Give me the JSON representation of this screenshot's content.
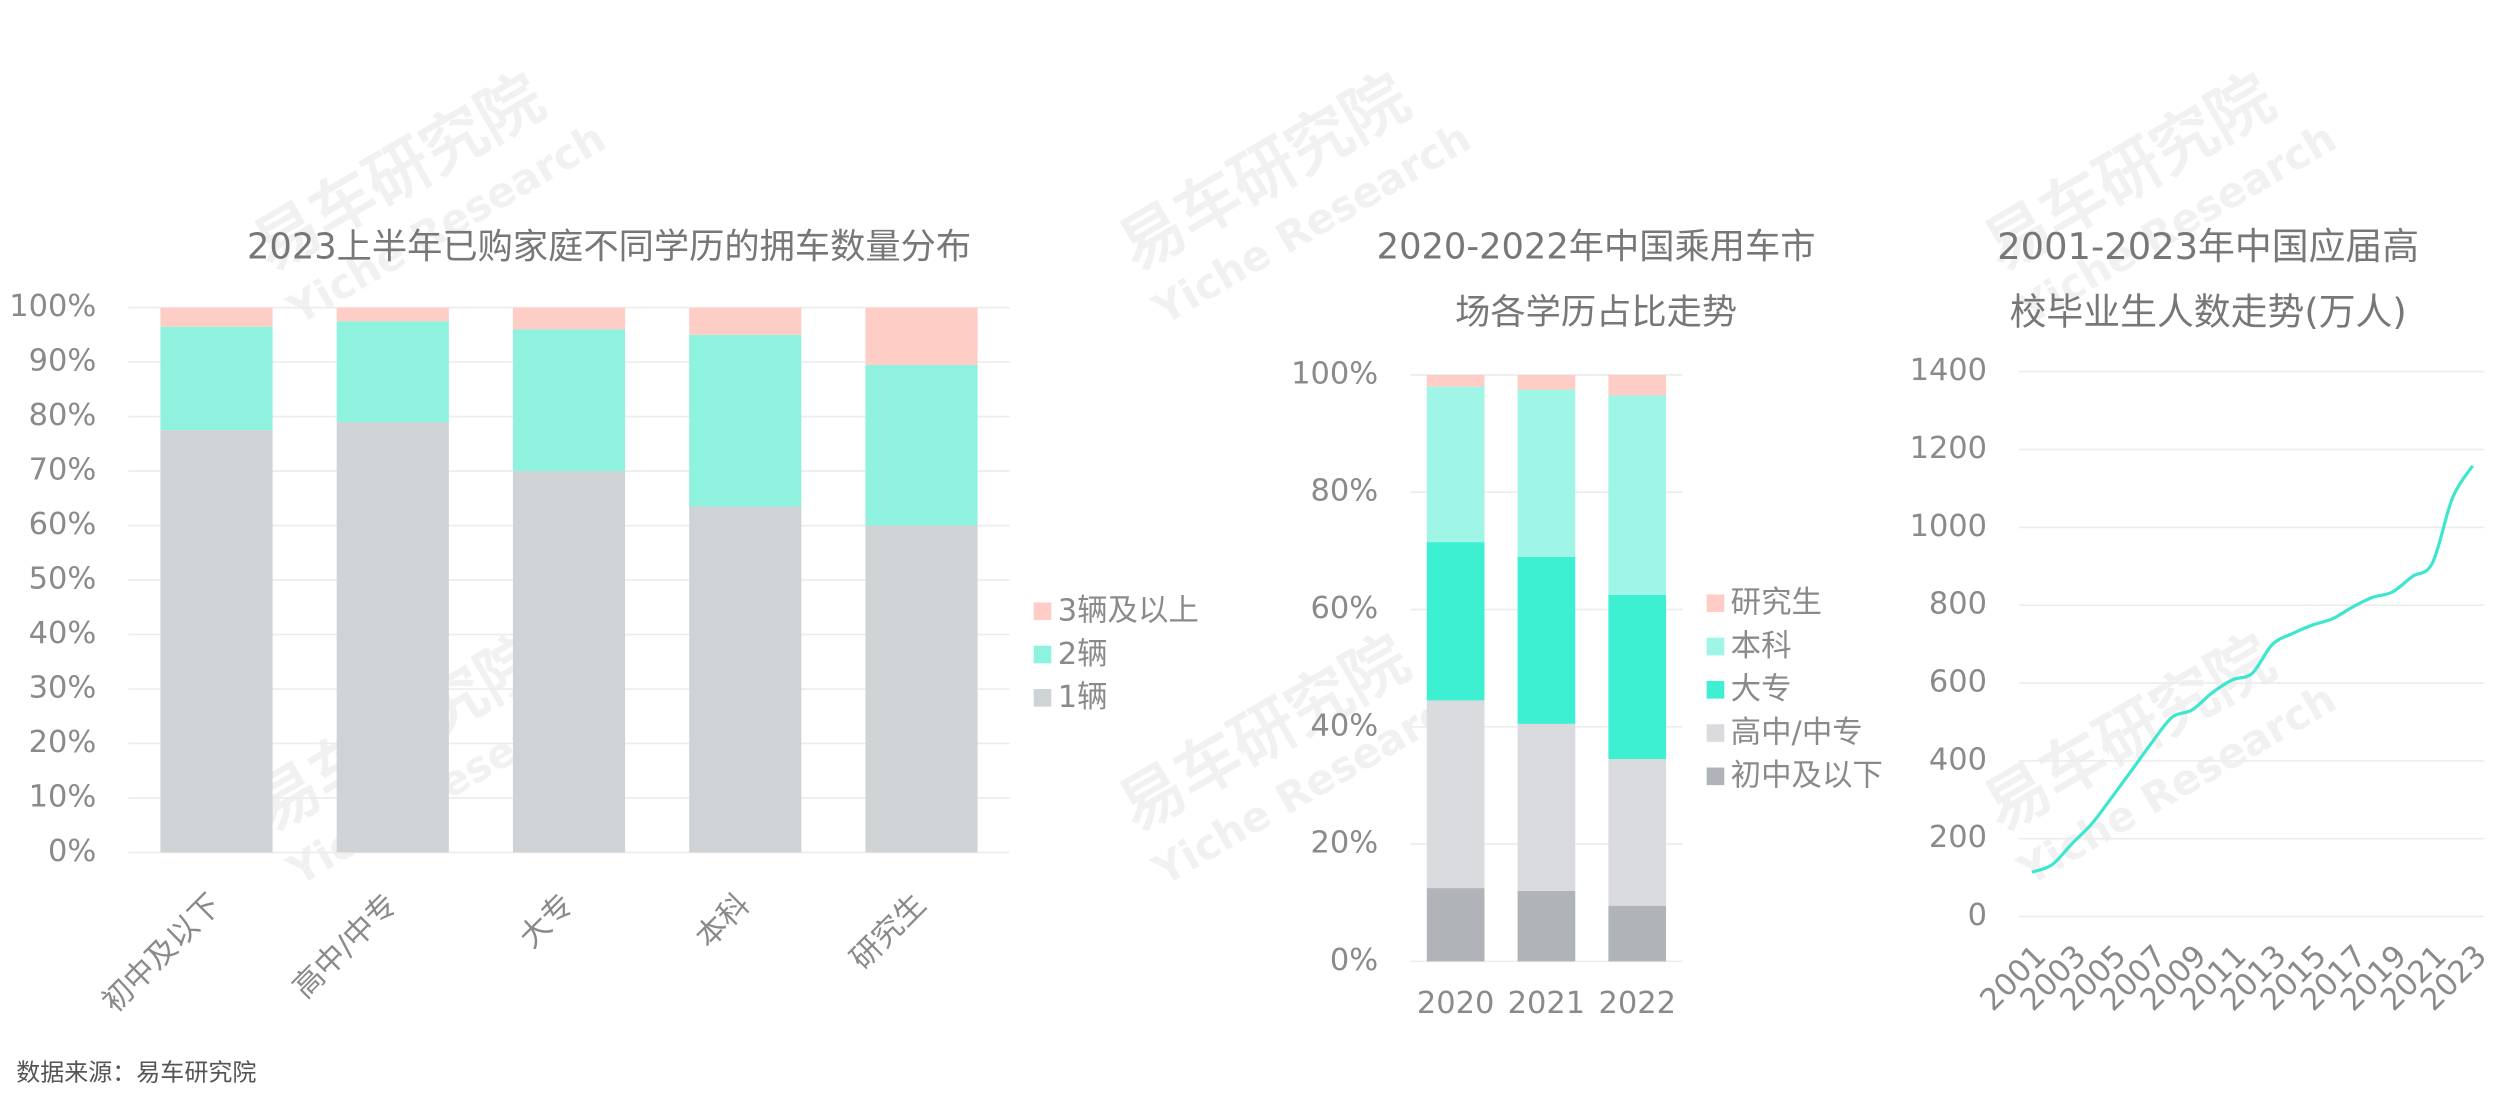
{
  "source": "数据来源：易车研究院",
  "watermark": {
    "cn": "易车研究院",
    "en": "Yiche Research"
  },
  "chart_data": [
    {
      "type": "stacked_bar",
      "title": "2023上半年已购家庭不同学历的拥车数量分布",
      "categories": [
        "初中及以下",
        "高中/中专",
        "大专",
        "本科",
        "研究生"
      ],
      "series": [
        {
          "name": "1辆",
          "color": "#d0d3d6",
          "values": [
            77.5,
            79,
            70,
            63.5,
            60
          ]
        },
        {
          "name": "2辆",
          "color": "#8ef2df",
          "values": [
            19,
            18.5,
            26,
            31.5,
            29.5
          ]
        },
        {
          "name": "3辆及以上",
          "color": "#fdcdc6",
          "values": [
            3.5,
            2.5,
            4,
            5,
            10.5
          ]
        }
      ],
      "ylim": [
        0,
        100
      ],
      "yticks": [
        {
          "value": 0,
          "label": "0%"
        },
        {
          "value": 10,
          "label": "10%"
        },
        {
          "value": 20,
          "label": "20%"
        },
        {
          "value": 30,
          "label": "30%"
        },
        {
          "value": 40,
          "label": "40%"
        },
        {
          "value": 50,
          "label": "50%"
        },
        {
          "value": 60,
          "label": "60%"
        },
        {
          "value": 70,
          "label": "70%"
        },
        {
          "value": 80,
          "label": "80%"
        },
        {
          "value": 90,
          "label": "90%"
        },
        {
          "value": 100,
          "label": "100%"
        }
      ],
      "grid": true,
      "legend": "right"
    },
    {
      "type": "stacked_bar",
      "title": [
        "2020-2022年中国乘用车市",
        "场各学历占比走势"
      ],
      "categories": [
        "2020",
        "2021",
        "2022"
      ],
      "series": [
        {
          "name": "初中及以下",
          "color": "#b0b4b8",
          "values": [
            12.5,
            12,
            9.5
          ]
        },
        {
          "name": "高中/中专",
          "color": "#d9dbde",
          "values": [
            32,
            28.5,
            25
          ]
        },
        {
          "name": "大专",
          "color": "#3ef0d2",
          "values": [
            27,
            28.5,
            28
          ]
        },
        {
          "name": "本科",
          "color": "#9ff5e6",
          "values": [
            26.5,
            28.5,
            34
          ]
        },
        {
          "name": "研究生",
          "color": "#fdcdc6",
          "values": [
            2,
            2.5,
            3.5
          ]
        }
      ],
      "ylim": [
        0,
        100
      ],
      "yticks": [
        {
          "value": 0,
          "label": "0%"
        },
        {
          "value": 20,
          "label": "20%"
        },
        {
          "value": 40,
          "label": "40%"
        },
        {
          "value": 60,
          "label": "60%"
        },
        {
          "value": 80,
          "label": "80%"
        },
        {
          "value": 100,
          "label": "100%"
        }
      ],
      "grid": true,
      "legend": "right"
    },
    {
      "type": "line",
      "title": [
        "2001-2023年中国应届高",
        "校毕业生人数走势(万人)"
      ],
      "x": [
        2001,
        2002,
        2003,
        2004,
        2005,
        2006,
        2007,
        2008,
        2009,
        2010,
        2011,
        2012,
        2013,
        2014,
        2015,
        2016,
        2017,
        2018,
        2019,
        2020,
        2021,
        2022,
        2023
      ],
      "values": [
        114,
        133,
        187,
        239,
        307,
        377,
        448,
        512,
        531,
        575,
        608,
        625,
        699,
        727,
        749,
        765,
        795,
        820,
        834,
        874,
        909,
        1076,
        1158
      ],
      "color": "#3ee6cf",
      "xlim": [
        2001,
        2023
      ],
      "xticks": [
        2001,
        2003,
        2005,
        2007,
        2009,
        2011,
        2013,
        2015,
        2017,
        2019,
        2021,
        2023
      ],
      "ylim": [
        0,
        1400
      ],
      "yticks": [
        0,
        200,
        400,
        600,
        800,
        1000,
        1200,
        1400
      ],
      "grid": true
    }
  ]
}
